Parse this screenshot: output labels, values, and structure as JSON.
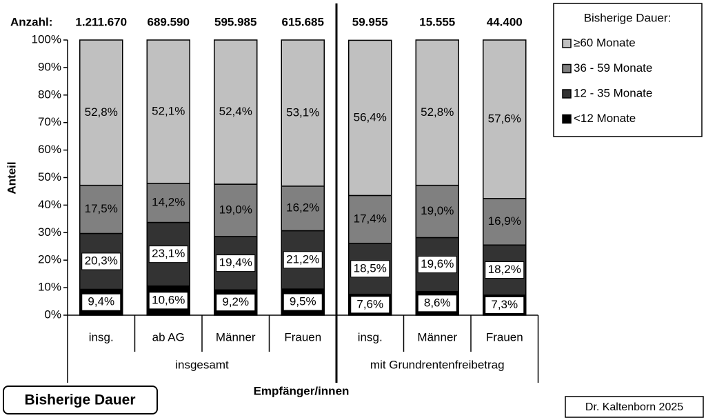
{
  "chart_data": {
    "type": "stacked_bar",
    "title": "Bisherige Dauer",
    "xlabel": "Empfänger/innen",
    "ylabel": "Anteil",
    "credit": "Dr. Kaltenborn 2025",
    "counts_label": "Anzahl:",
    "counts": [
      "1.211.670",
      "689.590",
      "595.985",
      "615.685",
      "59.955",
      "15.555",
      "44.400"
    ],
    "categories": [
      "insg.",
      "ab AG",
      "Männer",
      "Frauen",
      "insg.",
      "Männer",
      "Frauen"
    ],
    "groups": [
      {
        "name": "insgesamt",
        "size": 4
      },
      {
        "name": "mit Grundrentenfreibetrag",
        "size": 3
      }
    ],
    "legend_title": "Bisherige Dauer:",
    "legend_position": "top-right",
    "series": [
      {
        "name": "<12 Monate",
        "color": "#000000",
        "values": [
          9.4,
          10.6,
          9.2,
          9.5,
          7.6,
          8.6,
          7.3
        ],
        "value_labels": [
          "9,4%",
          "10,6%",
          "9,2%",
          "9,5%",
          "7,6%",
          "8,6%",
          "7,3%"
        ]
      },
      {
        "name": "12 - 35 Monate",
        "color": "#333333",
        "values": [
          20.3,
          23.1,
          19.4,
          21.2,
          18.5,
          19.6,
          18.2
        ],
        "value_labels": [
          "20,3%",
          "23,1%",
          "19,4%",
          "21,2%",
          "18,5%",
          "19,6%",
          "18,2%"
        ]
      },
      {
        "name": "36 - 59 Monate",
        "color": "#808080",
        "values": [
          17.5,
          14.2,
          19.0,
          16.2,
          17.4,
          19.0,
          16.9
        ],
        "value_labels": [
          "17,5%",
          "14,2%",
          "19,0%",
          "16,2%",
          "17,4%",
          "19,0%",
          "16,9%"
        ]
      },
      {
        "name": "≥60 Monate",
        "color": "#c0c0c0",
        "values": [
          52.8,
          52.1,
          52.4,
          53.1,
          56.4,
          52.8,
          57.6
        ],
        "value_labels": [
          "52,8%",
          "52,1%",
          "52,4%",
          "53,1%",
          "56,4%",
          "52,8%",
          "57,6%"
        ]
      }
    ],
    "ylim": [
      0,
      100
    ],
    "yticks": [
      {
        "value": 0,
        "label": "0%"
      },
      {
        "value": 10,
        "label": "10%"
      },
      {
        "value": 20,
        "label": "20%"
      },
      {
        "value": 30,
        "label": "30%"
      },
      {
        "value": 40,
        "label": "40%"
      },
      {
        "value": 50,
        "label": "50%"
      },
      {
        "value": 60,
        "label": "60%"
      },
      {
        "value": 70,
        "label": "70%"
      },
      {
        "value": 80,
        "label": "80%"
      },
      {
        "value": 90,
        "label": "90%"
      },
      {
        "value": 100,
        "label": "100%"
      }
    ]
  }
}
